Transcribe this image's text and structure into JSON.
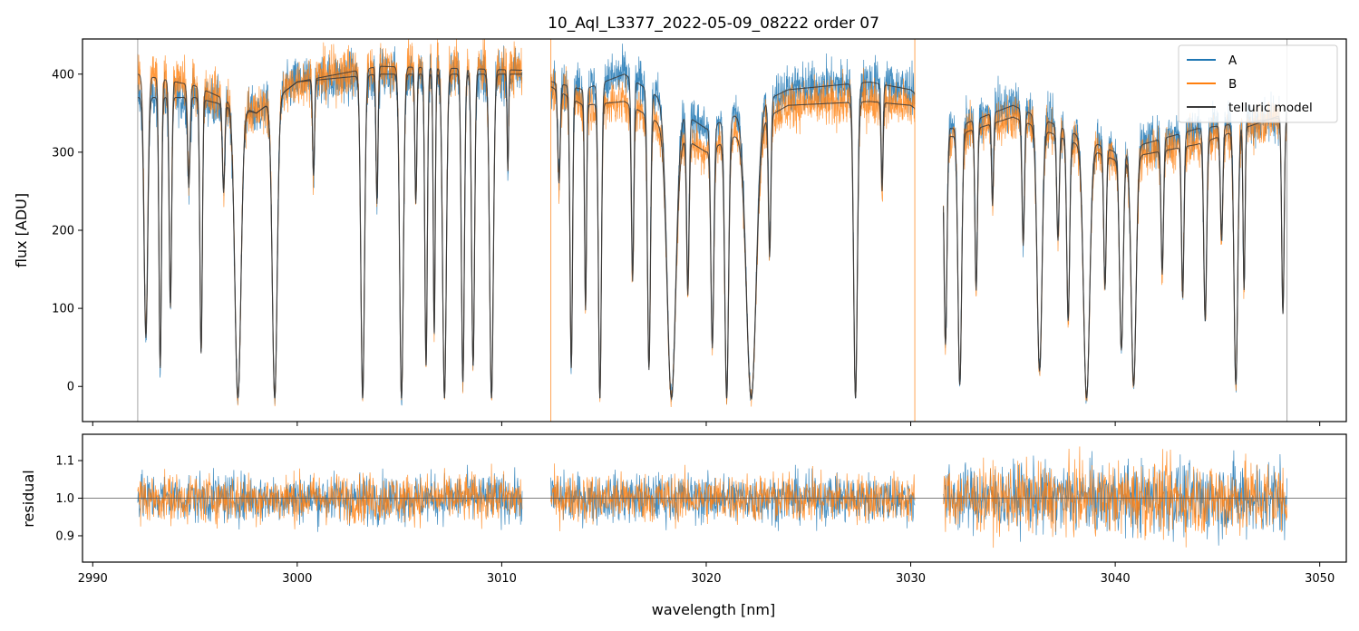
{
  "chart_data": [
    {
      "type": "line",
      "panel": "top",
      "title": "10_Aql_L3377_2022-05-09_08222  order 07",
      "xlabel": "",
      "ylabel": "flux [ADU]",
      "xlim": [
        2989.5,
        3051.3
      ],
      "ylim": [
        -45,
        445
      ],
      "yticks": [
        0,
        100,
        200,
        300,
        400
      ],
      "xticks": [
        2990,
        3000,
        3010,
        3020,
        3030,
        3040,
        3050
      ],
      "legend": {
        "position": "top-right",
        "entries": [
          "A",
          "B",
          "telluric model"
        ]
      },
      "series": [
        {
          "name": "A",
          "color": "#1f77b4",
          "segments": [
            [
              2992.2,
              3011.0
            ],
            [
              3012.4,
              3030.2
            ],
            [
              3031.6,
              3048.4
            ]
          ]
        },
        {
          "name": "B",
          "color": "#ff7f0e",
          "segments": [
            [
              2992.2,
              3011.0
            ],
            [
              3012.4,
              3030.2
            ],
            [
              3031.6,
              3048.4
            ]
          ]
        },
        {
          "name": "telluric model",
          "color": "#3a3a3a",
          "segments": [
            [
              2992.2,
              3011.0
            ],
            [
              3012.4,
              3030.2
            ],
            [
              3031.6,
              3048.4
            ]
          ]
        }
      ],
      "continuum_A": [
        [
          2992.2,
          370
        ],
        [
          2995,
          370
        ],
        [
          2998,
          350
        ],
        [
          3000,
          390
        ],
        [
          3004,
          400
        ],
        [
          3011,
          400
        ],
        [
          3014,
          380
        ],
        [
          3016,
          400
        ],
        [
          3020,
          330
        ],
        [
          3024,
          380
        ],
        [
          3028,
          390
        ],
        [
          3030,
          380
        ],
        [
          3032,
          330
        ],
        [
          3035,
          360
        ],
        [
          3040,
          300
        ],
        [
          3044,
          330
        ],
        [
          3048.4,
          345
        ]
      ],
      "continuum_B": [
        [
          2992.2,
          400
        ],
        [
          2995,
          385
        ],
        [
          2998,
          350
        ],
        [
          3000,
          390
        ],
        [
          3004,
          410
        ],
        [
          3011,
          405
        ],
        [
          3014,
          360
        ],
        [
          3016,
          365
        ],
        [
          3020,
          300
        ],
        [
          3024,
          360
        ],
        [
          3028,
          365
        ],
        [
          3030,
          360
        ],
        [
          3032,
          320
        ],
        [
          3035,
          345
        ],
        [
          3040,
          290
        ],
        [
          3044,
          310
        ],
        [
          3048.4,
          350
        ]
      ],
      "absorption_lines": [
        [
          2992.6,
          0.8,
          0.15
        ],
        [
          2993.3,
          0.9,
          0.1
        ],
        [
          2993.8,
          0.7,
          0.1
        ],
        [
          2994.7,
          0.3,
          0.1
        ],
        [
          2995.3,
          0.85,
          0.1
        ],
        [
          2996.4,
          0.3,
          0.1
        ],
        [
          2997.1,
          1.0,
          0.25
        ],
        [
          2998.9,
          1.0,
          0.2
        ],
        [
          3000.8,
          0.3,
          0.08
        ],
        [
          3003.2,
          1.0,
          0.15
        ],
        [
          3003.9,
          0.4,
          0.08
        ],
        [
          3005.1,
          1.0,
          0.15
        ],
        [
          3005.8,
          0.4,
          0.08
        ],
        [
          3006.3,
          0.9,
          0.1
        ],
        [
          3006.7,
          0.8,
          0.08
        ],
        [
          3007.2,
          1.0,
          0.15
        ],
        [
          3008.1,
          0.95,
          0.12
        ],
        [
          3008.6,
          0.9,
          0.12
        ],
        [
          3009.5,
          1.0,
          0.15
        ],
        [
          3010.3,
          0.3,
          0.06
        ],
        [
          3012.8,
          0.3,
          0.1
        ],
        [
          3013.4,
          0.9,
          0.1
        ],
        [
          3014.1,
          0.7,
          0.08
        ],
        [
          3014.8,
          1.0,
          0.12
        ],
        [
          3016.4,
          0.6,
          0.1
        ],
        [
          3017.2,
          0.9,
          0.12
        ],
        [
          3018.3,
          1.0,
          0.35
        ],
        [
          3019.1,
          0.6,
          0.1
        ],
        [
          3020.3,
          0.8,
          0.12
        ],
        [
          3021.0,
          1.0,
          0.15
        ],
        [
          3022.2,
          1.0,
          0.4
        ],
        [
          3023.1,
          0.5,
          0.1
        ],
        [
          3027.3,
          1.0,
          0.15
        ],
        [
          3028.6,
          0.3,
          0.08
        ],
        [
          3030.4,
          0.7,
          0.1
        ],
        [
          3031.7,
          0.8,
          0.12
        ],
        [
          3032.4,
          0.95,
          0.15
        ],
        [
          3033.2,
          0.6,
          0.1
        ],
        [
          3034.0,
          0.3,
          0.08
        ],
        [
          3035.5,
          0.45,
          0.1
        ],
        [
          3036.3,
          0.9,
          0.2
        ],
        [
          3037.2,
          0.4,
          0.1
        ],
        [
          3037.7,
          0.7,
          0.12
        ],
        [
          3038.6,
          1.0,
          0.25
        ],
        [
          3039.5,
          0.55,
          0.1
        ],
        [
          3040.3,
          0.8,
          0.15
        ],
        [
          3040.9,
          0.95,
          0.2
        ],
        [
          3042.3,
          0.5,
          0.1
        ],
        [
          3043.3,
          0.6,
          0.1
        ],
        [
          3044.4,
          0.7,
          0.12
        ],
        [
          3045.2,
          0.4,
          0.1
        ],
        [
          3045.9,
          0.95,
          0.15
        ],
        [
          3046.3,
          0.6,
          0.08
        ],
        [
          3048.2,
          0.7,
          0.1
        ]
      ],
      "floor_value": -15
    },
    {
      "type": "line",
      "panel": "bottom",
      "title": "",
      "xlabel": "wavelength [nm]",
      "ylabel": "residual",
      "xlim": [
        2989.5,
        3051.3
      ],
      "ylim": [
        0.83,
        1.17
      ],
      "yticks": [
        0.9,
        1.0,
        1.1
      ],
      "yticklabels": [
        "0.9",
        "1.0",
        "1.1"
      ],
      "xticks": [
        2990,
        3000,
        3010,
        3020,
        3030,
        3040,
        3050
      ],
      "reference_line": 1.0,
      "series": [
        {
          "name": "A",
          "color": "#1f77b4",
          "center": 1.0,
          "spread": 0.055
        },
        {
          "name": "B",
          "color": "#ff7f0e",
          "center": 1.0,
          "spread": 0.055
        }
      ]
    }
  ]
}
